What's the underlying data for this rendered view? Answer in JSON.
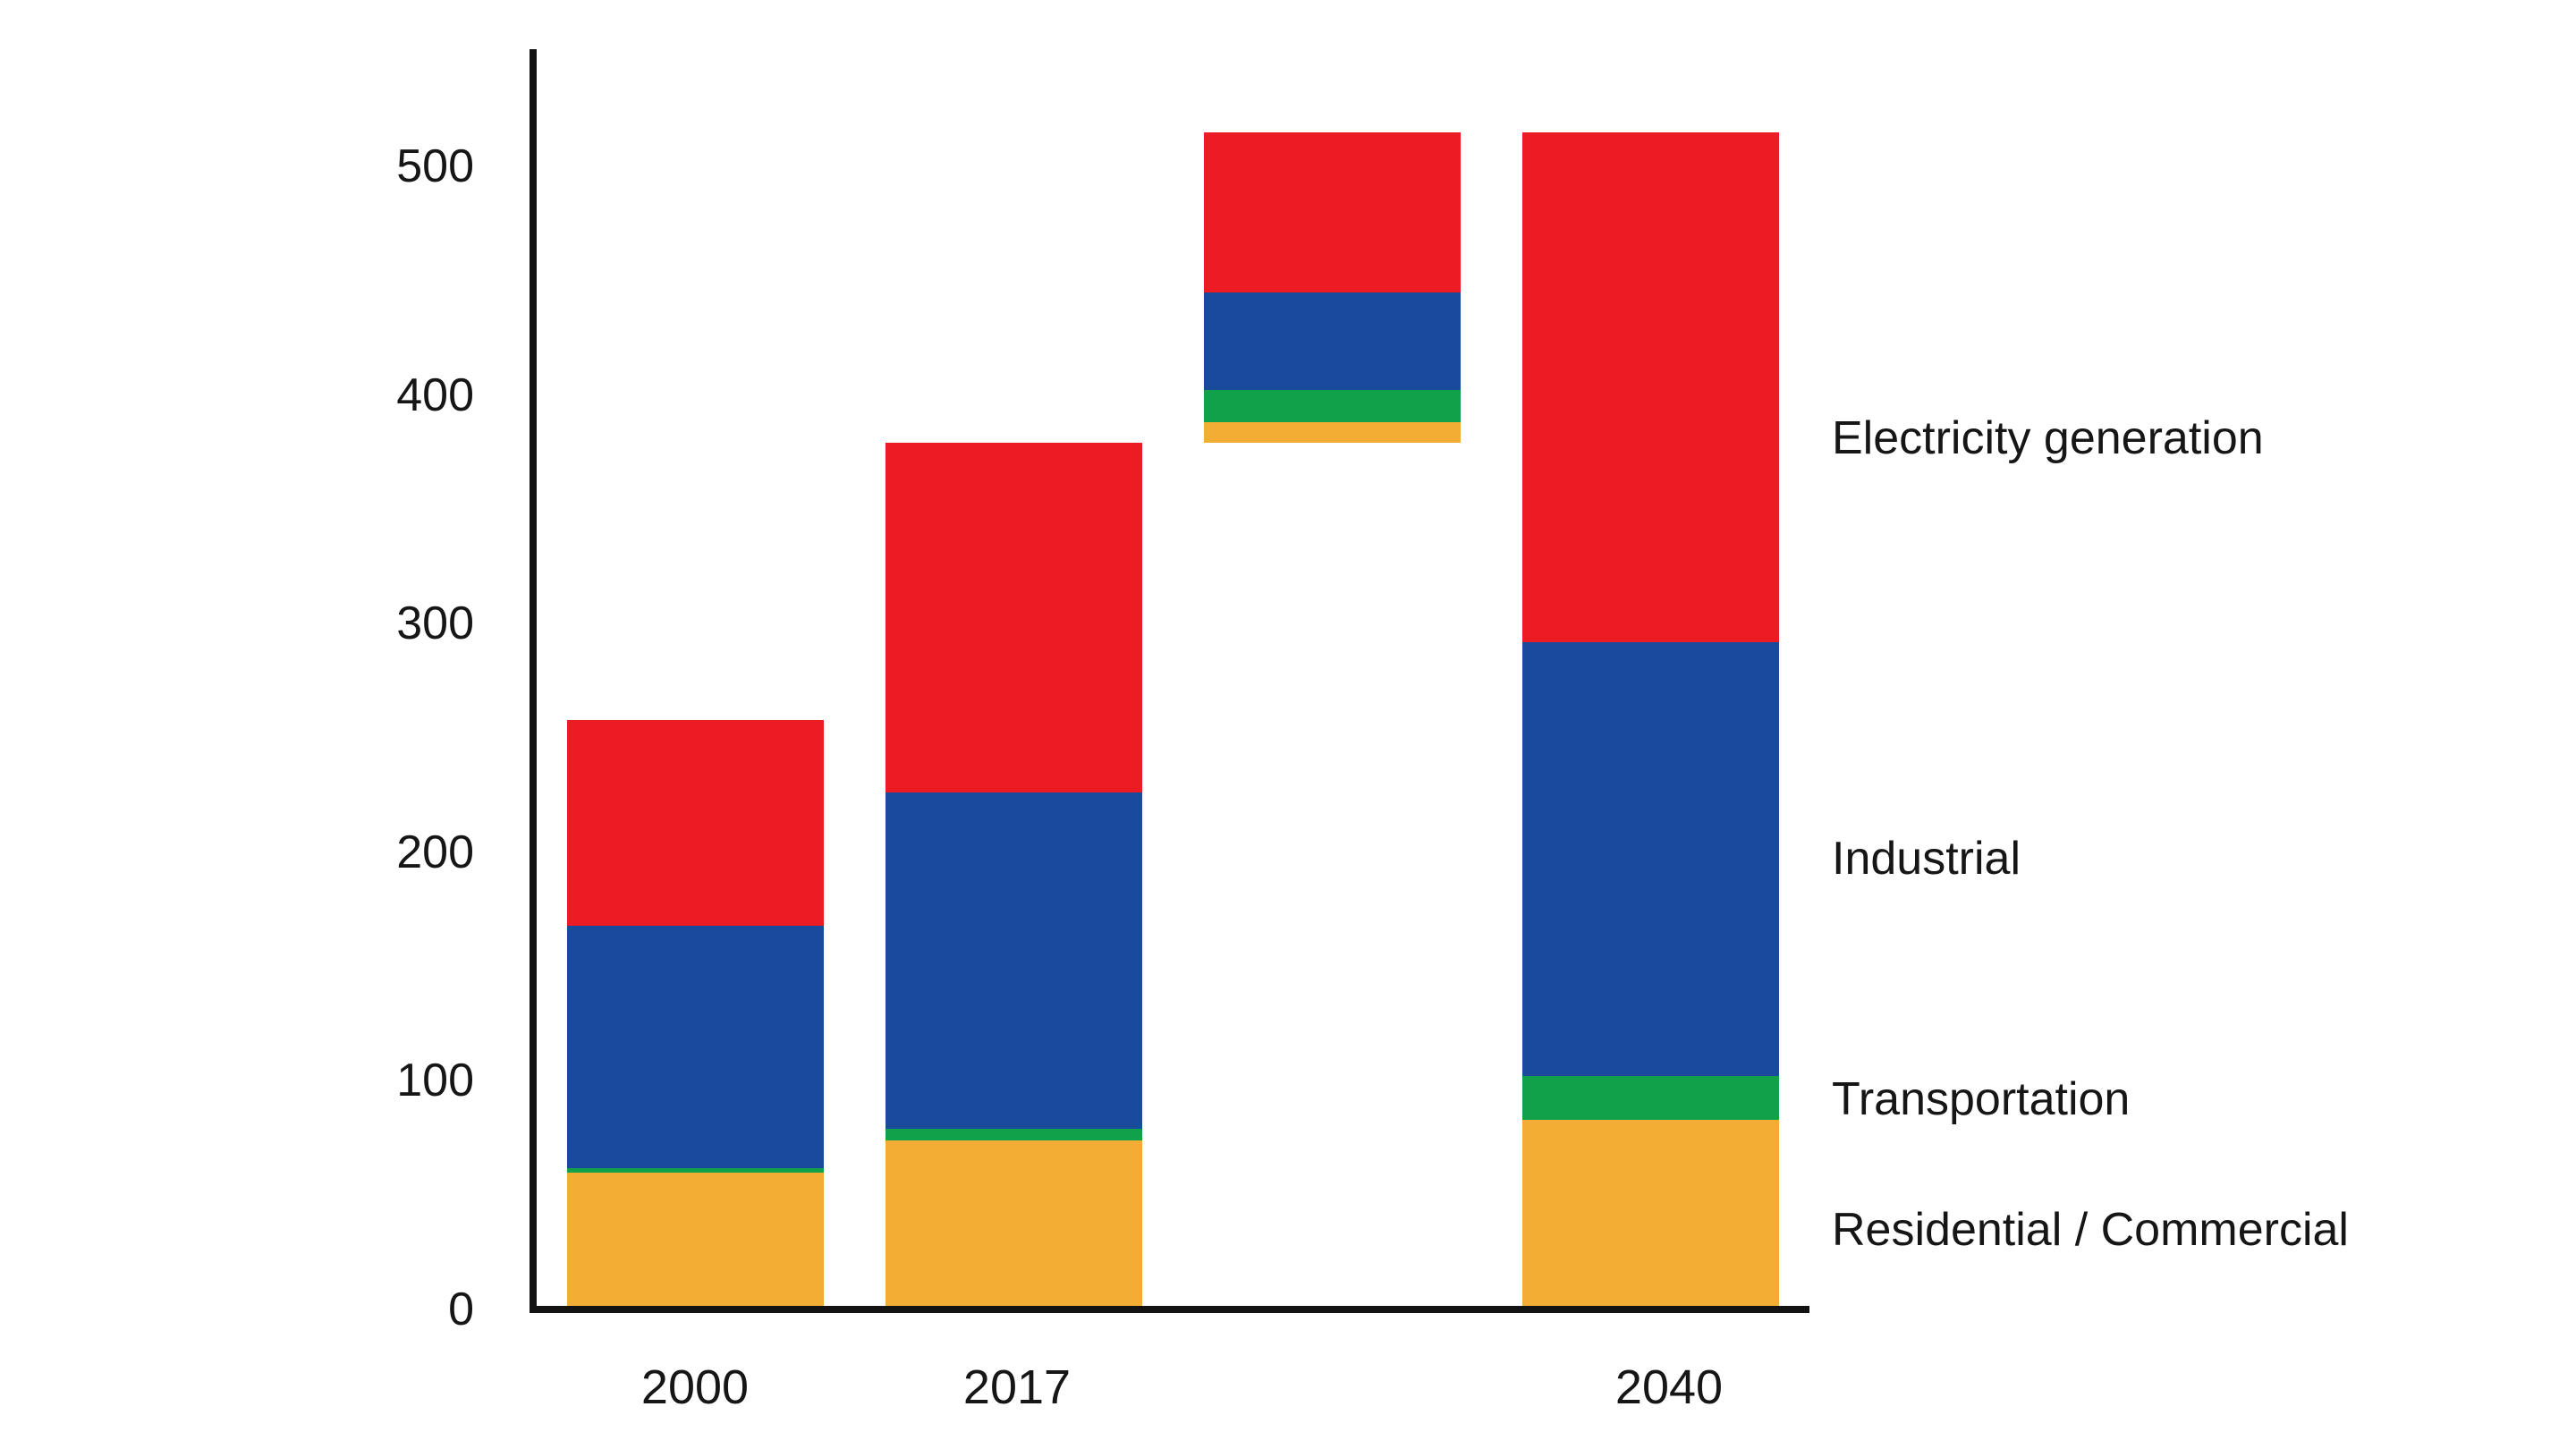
{
  "colors": {
    "background": "#FFFFFF",
    "axis": "#121212",
    "text": "#161616"
  },
  "chart_data": {
    "type": "bar",
    "stacked": true,
    "title": "",
    "xlabel": "",
    "ylabel": "",
    "grid": false,
    "y_ticks": [
      0,
      100,
      200,
      300,
      400,
      500
    ],
    "y_range": [
      0,
      550
    ],
    "categories": [
      "2000",
      "2017",
      "",
      "2040"
    ],
    "series_names": [
      "Residential / Commercial",
      "Transportation",
      "Industrial",
      "Electricity generation"
    ],
    "series_colors": {
      "Residential / Commercial": "#F3AC34",
      "Transportation": "#12A14B",
      "Industrial": "#1A4A9C",
      "Electricity generation": "#EC1C24"
    },
    "bars": [
      {
        "label": "2000",
        "base": 0,
        "floating": false,
        "segments": [
          {
            "series": "Residential / Commercial",
            "value": 60
          },
          {
            "series": "Transportation",
            "value": 2
          },
          {
            "series": "Industrial",
            "value": 106
          },
          {
            "series": "Electricity generation",
            "value": 90
          }
        ]
      },
      {
        "label": "2017",
        "base": 0,
        "floating": false,
        "segments": [
          {
            "series": "Residential / Commercial",
            "value": 74
          },
          {
            "series": "Transportation",
            "value": 5
          },
          {
            "series": "Industrial",
            "value": 147
          },
          {
            "series": "Electricity generation",
            "value": 153
          }
        ]
      },
      {
        "label": "",
        "base": 379,
        "floating": true,
        "segments": [
          {
            "series": "Residential / Commercial",
            "value": 9
          },
          {
            "series": "Transportation",
            "value": 14
          },
          {
            "series": "Industrial",
            "value": 43
          },
          {
            "series": "Electricity generation",
            "value": 70
          }
        ]
      },
      {
        "label": "2040",
        "base": 0,
        "floating": false,
        "segments": [
          {
            "series": "Residential / Commercial",
            "value": 83
          },
          {
            "series": "Transportation",
            "value": 19
          },
          {
            "series": "Industrial",
            "value": 190
          },
          {
            "series": "Electricity generation",
            "value": 223
          }
        ]
      }
    ],
    "right_labels": [
      {
        "text": "Electricity generation",
        "at_value": 381
      },
      {
        "text": "Industrial",
        "at_value": 197
      },
      {
        "text": "Transportation",
        "at_value": 92
      },
      {
        "text": "Residential / Commercial",
        "at_value": 35
      }
    ],
    "legend_position": "right-of-bars"
  }
}
